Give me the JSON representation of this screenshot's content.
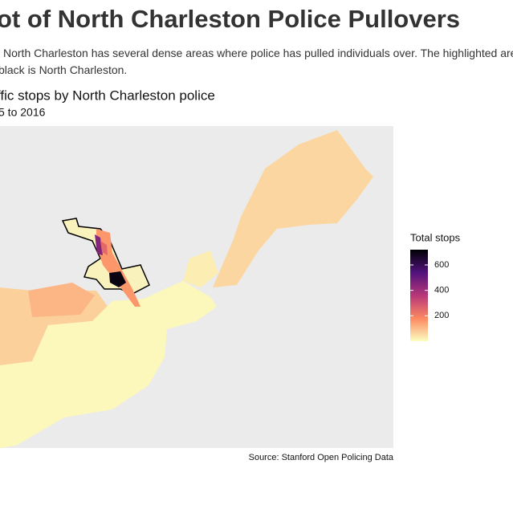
{
  "header": {
    "title": "ot of North Charleston Police Pullovers",
    "lead": [
      "North Charleston has several dense areas where police has pulled individuals over. The highlighted are",
      "black is North Charleston."
    ]
  },
  "chart_data": {
    "type": "choropleth",
    "title": "ffic stops by North Charleston police",
    "subtitle": "5 to 2016",
    "caption": "Source: Stanford Open Policing Data",
    "legend_title": "Total stops",
    "values": [
      60,
      25,
      70,
      110,
      10,
      15,
      160,
      450,
      250,
      700
    ],
    "colors": [
      "#fcfdbf",
      "#fc8961",
      "#b73779",
      "#51127c",
      "#000004"
    ],
    "clim": [
      0,
      720
    ],
    "cticks": [
      200,
      400,
      600
    ]
  }
}
